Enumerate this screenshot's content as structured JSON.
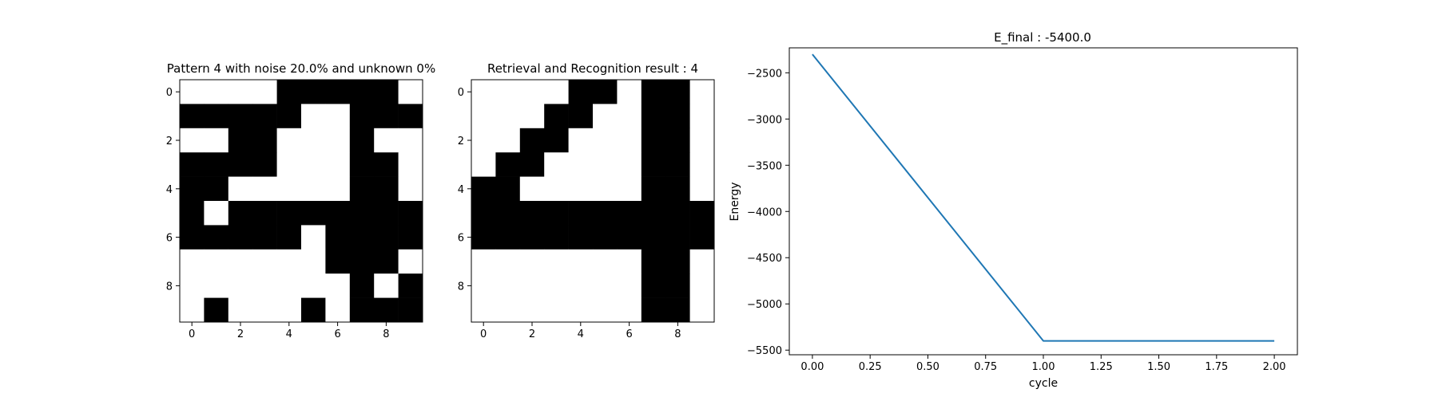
{
  "chart_data": [
    {
      "type": "heatmap",
      "title": "Pattern 4 with noise 20.0% and unknown 0%",
      "x_ticks": [
        0,
        2,
        4,
        6,
        8
      ],
      "y_ticks": [
        0,
        2,
        4,
        6,
        8
      ],
      "colors": {
        "0": "#ffffff",
        "1": "#000000"
      },
      "grid": [
        [
          0,
          0,
          0,
          0,
          1,
          1,
          1,
          1,
          1,
          0
        ],
        [
          1,
          1,
          1,
          1,
          1,
          0,
          0,
          1,
          1,
          1
        ],
        [
          0,
          0,
          1,
          1,
          0,
          0,
          0,
          1,
          0,
          0
        ],
        [
          1,
          1,
          1,
          1,
          0,
          0,
          0,
          1,
          1,
          0
        ],
        [
          1,
          1,
          0,
          0,
          0,
          0,
          0,
          1,
          1,
          0
        ],
        [
          1,
          0,
          1,
          1,
          1,
          1,
          1,
          1,
          1,
          1
        ],
        [
          1,
          1,
          1,
          1,
          1,
          0,
          1,
          1,
          1,
          1
        ],
        [
          0,
          0,
          0,
          0,
          0,
          0,
          1,
          1,
          1,
          0
        ],
        [
          0,
          0,
          0,
          0,
          0,
          0,
          0,
          1,
          0,
          1
        ],
        [
          0,
          1,
          0,
          0,
          0,
          1,
          0,
          1,
          1,
          1
        ]
      ]
    },
    {
      "type": "heatmap",
      "title": "Retrieval and Recognition result : 4",
      "x_ticks": [
        0,
        2,
        4,
        6,
        8
      ],
      "y_ticks": [
        0,
        2,
        4,
        6,
        8
      ],
      "colors": {
        "0": "#ffffff",
        "1": "#000000"
      },
      "grid": [
        [
          0,
          0,
          0,
          0,
          1,
          1,
          0,
          1,
          1,
          0
        ],
        [
          0,
          0,
          0,
          1,
          1,
          0,
          0,
          1,
          1,
          0
        ],
        [
          0,
          0,
          1,
          1,
          0,
          0,
          0,
          1,
          1,
          0
        ],
        [
          0,
          1,
          1,
          0,
          0,
          0,
          0,
          1,
          1,
          0
        ],
        [
          1,
          1,
          0,
          0,
          0,
          0,
          0,
          1,
          1,
          0
        ],
        [
          1,
          1,
          1,
          1,
          1,
          1,
          1,
          1,
          1,
          1
        ],
        [
          1,
          1,
          1,
          1,
          1,
          1,
          1,
          1,
          1,
          1
        ],
        [
          0,
          0,
          0,
          0,
          0,
          0,
          0,
          1,
          1,
          0
        ],
        [
          0,
          0,
          0,
          0,
          0,
          0,
          0,
          1,
          1,
          0
        ],
        [
          0,
          0,
          0,
          0,
          0,
          0,
          0,
          1,
          1,
          0
        ]
      ]
    },
    {
      "type": "line",
      "title": "E_final : -5400.0",
      "xlabel": "cycle",
      "ylabel": "Energy",
      "xlim": [
        -0.1,
        2.1
      ],
      "ylim": [
        -5550,
        -2230
      ],
      "x_ticks": [
        "0.00",
        "0.25",
        "0.50",
        "0.75",
        "1.00",
        "1.25",
        "1.50",
        "1.75",
        "2.00"
      ],
      "y_ticks": [
        "-2500",
        "-3000",
        "-3500",
        "-4000",
        "-4500",
        "-5000",
        "-5500"
      ],
      "grid": false,
      "line_color": "#1f77b4",
      "series": [
        {
          "x": [
            0,
            1,
            2
          ],
          "values": [
            -2300,
            -5400,
            -5400
          ]
        }
      ]
    }
  ]
}
